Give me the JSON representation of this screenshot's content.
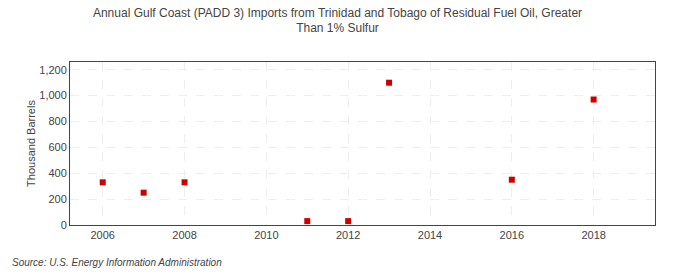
{
  "chart_data": {
    "type": "scatter",
    "title": "Annual Gulf Coast (PADD 3) Imports from Trinidad and Tobago of Residual Fuel Oil, Greater\nThan 1% Sulfur",
    "ylabel": "Thousand Barrels",
    "source": "Source: U.S. Energy Information Administration",
    "x": [
      2006,
      2007,
      2008,
      2011,
      2012,
      2013,
      2016,
      2018
    ],
    "values": [
      330,
      250,
      330,
      30,
      30,
      1100,
      350,
      970
    ],
    "color": "#cc0000",
    "marker": "square",
    "xlim": [
      2005.2,
      2019.5
    ],
    "ylim": [
      0,
      1260
    ],
    "xticks": [
      2006,
      2008,
      2010,
      2012,
      2014,
      2016,
      2018
    ],
    "yticks": [
      0,
      200,
      400,
      600,
      800,
      {
        "value": 1000,
        "label": "1,000"
      },
      {
        "value": 1200,
        "label": "1,200"
      }
    ],
    "grid": true
  }
}
